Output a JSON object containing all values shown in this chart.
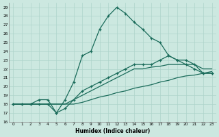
{
  "xlabel": "Humidex (Indice chaleur)",
  "bg_color": "#cce8e0",
  "grid_color": "#aed4cb",
  "line_color": "#1a6b5a",
  "ylim": [
    16,
    29.5
  ],
  "xlim": [
    -0.5,
    23.5
  ],
  "yticks": [
    16,
    17,
    18,
    19,
    20,
    21,
    22,
    23,
    24,
    25,
    26,
    27,
    28,
    29
  ],
  "xticks": [
    0,
    1,
    2,
    3,
    4,
    5,
    6,
    7,
    8,
    9,
    10,
    11,
    12,
    13,
    14,
    15,
    16,
    17,
    18,
    19,
    20,
    21,
    22,
    23
  ],
  "series": [
    {
      "x": [
        0,
        1,
        2,
        3,
        4,
        5,
        6,
        7,
        8,
        9,
        10,
        11,
        12,
        13,
        14,
        15,
        16,
        17,
        18,
        19,
        20,
        21,
        22,
        23
      ],
      "y": [
        18,
        18,
        18,
        18,
        18,
        18,
        18,
        18,
        18.2,
        18.5,
        18.8,
        19.0,
        19.3,
        19.5,
        19.8,
        20.0,
        20.2,
        20.5,
        20.7,
        21.0,
        21.2,
        21.3,
        21.5,
        21.7
      ],
      "marker": false
    },
    {
      "x": [
        0,
        1,
        2,
        3,
        4,
        5,
        6,
        7,
        8,
        9,
        10,
        11,
        12,
        13,
        14,
        15,
        16,
        17,
        18,
        19,
        20,
        21,
        22,
        23
      ],
      "y": [
        18,
        18,
        18,
        18,
        18,
        18,
        18,
        18.5,
        19.0,
        19.5,
        20.0,
        20.5,
        21.0,
        21.5,
        22.0,
        22.0,
        22.2,
        22.3,
        22.5,
        22.5,
        22.5,
        22.5,
        22.0,
        22.0
      ],
      "marker": false
    },
    {
      "x": [
        0,
        1,
        2,
        3,
        4,
        5,
        6,
        7,
        8,
        9,
        10,
        11,
        12,
        13,
        14,
        15,
        16,
        17,
        18,
        19,
        20,
        21,
        22,
        23
      ],
      "y": [
        18,
        18,
        18,
        18,
        18,
        17.0,
        18.5,
        20.5,
        23.5,
        24.0,
        26.5,
        28.0,
        29.0,
        28.3,
        27.3,
        26.5,
        25.5,
        25.0,
        23.5,
        23.0,
        22.5,
        22.0,
        21.5,
        21.5
      ],
      "marker": true
    },
    {
      "x": [
        0,
        1,
        2,
        3,
        4,
        5,
        6,
        7,
        8,
        9,
        10,
        11,
        12,
        13,
        14,
        15,
        16,
        17,
        18,
        19,
        20,
        21,
        22,
        23
      ],
      "y": [
        18,
        18,
        18,
        18.5,
        18.5,
        17.0,
        17.5,
        18.5,
        19.5,
        20.0,
        20.5,
        21.0,
        21.5,
        22.0,
        22.5,
        22.5,
        22.5,
        23.0,
        23.5,
        23.0,
        23.0,
        22.5,
        21.5,
        21.5
      ],
      "marker": true
    }
  ]
}
